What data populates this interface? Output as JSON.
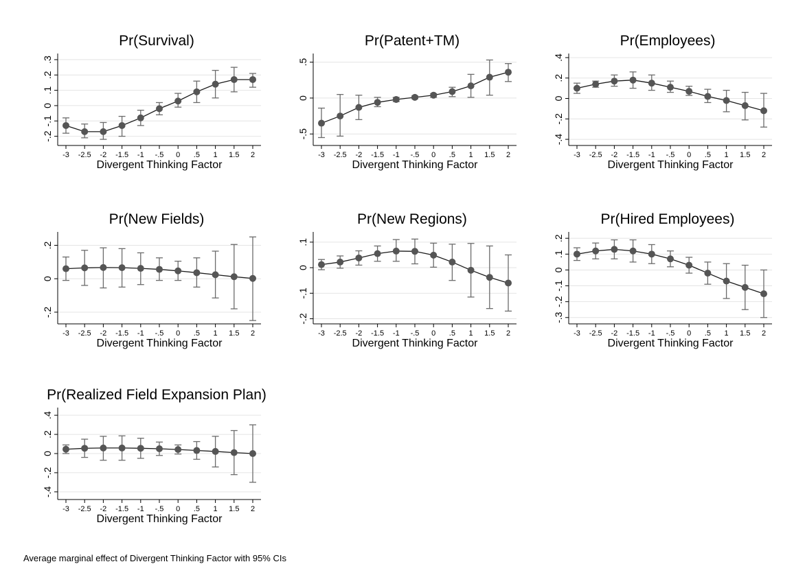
{
  "figure": {
    "note": "Average marginal effect of Divergent Thinking Factor with 95% CIs"
  },
  "chart_data": [
    {
      "type": "line",
      "title": "Pr(Survival)",
      "xlabel": "Divergent Thinking Factor",
      "ylabel": "",
      "x": [
        -3,
        -2.5,
        -2,
        -1.5,
        -1,
        -0.5,
        0,
        0.5,
        1,
        1.5,
        2
      ],
      "xtick_labels": [
        "-3",
        "-2.5",
        "-2",
        "-1.5",
        "-1",
        "-.5",
        "0",
        ".5",
        "1",
        "1.5",
        "2"
      ],
      "values": [
        -0.13,
        -0.17,
        -0.17,
        -0.13,
        -0.08,
        -0.02,
        0.03,
        0.09,
        0.14,
        0.17,
        0.17
      ],
      "ci_low": [
        -0.18,
        -0.21,
        -0.22,
        -0.2,
        -0.13,
        -0.06,
        -0.01,
        0.02,
        0.05,
        0.09,
        0.12
      ],
      "ci_high": [
        -0.08,
        -0.12,
        -0.11,
        -0.07,
        -0.03,
        0.02,
        0.08,
        0.16,
        0.23,
        0.25,
        0.21
      ],
      "yticks": [
        -0.2,
        -0.1,
        0,
        0.1,
        0.2,
        0.3
      ],
      "ytick_labels": [
        "-.2",
        "-.1",
        "0",
        ".1",
        ".2",
        ".3"
      ],
      "ylim": [
        -0.26,
        0.34
      ],
      "grid": true
    },
    {
      "type": "line",
      "title": "Pr(Patent+TM)",
      "xlabel": "Divergent Thinking Factor",
      "ylabel": "",
      "x": [
        -3,
        -2.5,
        -2,
        -1.5,
        -1,
        -0.5,
        0,
        0.5,
        1,
        1.5,
        2
      ],
      "xtick_labels": [
        "-3",
        "-2.5",
        "-2",
        "-1.5",
        "-1",
        "-.5",
        "0",
        ".5",
        "1",
        "1.5",
        "2"
      ],
      "values": [
        -0.35,
        -0.25,
        -0.13,
        -0.06,
        -0.02,
        0.01,
        0.04,
        0.09,
        0.17,
        0.29,
        0.36
      ],
      "ci_low": [
        -0.55,
        -0.53,
        -0.3,
        -0.12,
        -0.05,
        -0.01,
        0.01,
        0.02,
        0.01,
        0.04,
        0.23
      ],
      "ci_high": [
        -0.14,
        0.05,
        0.04,
        0.01,
        0.01,
        0.03,
        0.06,
        0.15,
        0.33,
        0.53,
        0.48
      ],
      "yticks": [
        -0.5,
        0,
        0.5
      ],
      "ytick_labels": [
        "-.5",
        "0",
        ".5"
      ],
      "ylim": [
        -0.66,
        0.62
      ],
      "grid": true
    },
    {
      "type": "line",
      "title": "Pr(Employees)",
      "xlabel": "Divergent Thinking Factor",
      "ylabel": "",
      "x": [
        -3,
        -2.5,
        -2,
        -1.5,
        -1,
        -0.5,
        0,
        0.5,
        1,
        1.5,
        2
      ],
      "xtick_labels": [
        "-3",
        "-2.5",
        "-2",
        "-1.5",
        "-1",
        "-.5",
        "0",
        ".5",
        "1",
        "1.5",
        "2"
      ],
      "values": [
        0.1,
        0.14,
        0.17,
        0.18,
        0.15,
        0.11,
        0.07,
        0.02,
        -0.02,
        -0.07,
        -0.12
      ],
      "ci_low": [
        0.05,
        0.11,
        0.12,
        0.1,
        0.08,
        0.06,
        0.03,
        -0.04,
        -0.13,
        -0.21,
        -0.28
      ],
      "ci_high": [
        0.15,
        0.17,
        0.23,
        0.26,
        0.23,
        0.17,
        0.12,
        0.09,
        0.08,
        0.06,
        0.05
      ],
      "yticks": [
        -0.4,
        -0.2,
        0,
        0.2,
        0.4
      ],
      "ytick_labels": [
        "-.4",
        "-.2",
        "0",
        ".2",
        ".4"
      ],
      "ylim": [
        -0.46,
        0.44
      ],
      "grid": true
    },
    {
      "type": "line",
      "title": "Pr(New Fields)",
      "xlabel": "Divergent Thinking Factor",
      "ylabel": "",
      "x": [
        -3,
        -2.5,
        -2,
        -1.5,
        -1,
        -0.5,
        0,
        0.5,
        1,
        1.5,
        2
      ],
      "xtick_labels": [
        "-3",
        "-2.5",
        "-2",
        "-1.5",
        "-1",
        "-.5",
        "0",
        ".5",
        "1",
        "1.5",
        "2"
      ],
      "values": [
        0.06,
        0.065,
        0.067,
        0.066,
        0.062,
        0.056,
        0.047,
        0.036,
        0.024,
        0.012,
        0.002
      ],
      "ci_low": [
        -0.01,
        -0.04,
        -0.055,
        -0.05,
        -0.035,
        -0.01,
        -0.01,
        -0.05,
        -0.115,
        -0.18,
        -0.25
      ],
      "ci_high": [
        0.13,
        0.17,
        0.185,
        0.18,
        0.155,
        0.125,
        0.105,
        0.125,
        0.165,
        0.205,
        0.25
      ],
      "yticks": [
        -0.2,
        0,
        0.2
      ],
      "ytick_labels": [
        "-.2",
        "0",
        ".2"
      ],
      "ylim": [
        -0.27,
        0.28
      ],
      "grid": true
    },
    {
      "type": "line",
      "title": "Pr(New Regions)",
      "xlabel": "Divergent Thinking Factor",
      "ylabel": "",
      "x": [
        -3,
        -2.5,
        -2,
        -1.5,
        -1,
        -0.5,
        0,
        0.5,
        1,
        1.5,
        2
      ],
      "xtick_labels": [
        "-3",
        "-2.5",
        "-2",
        "-1.5",
        "-1",
        "-.5",
        "0",
        ".5",
        "1",
        "1.5",
        "2"
      ],
      "values": [
        0.012,
        0.022,
        0.038,
        0.055,
        0.065,
        0.064,
        0.049,
        0.022,
        -0.01,
        -0.038,
        -0.06
      ],
      "ci_low": [
        -0.008,
        -0.002,
        0.01,
        0.025,
        0.025,
        0.015,
        0.002,
        -0.05,
        -0.115,
        -0.16,
        -0.17
      ],
      "ci_high": [
        0.032,
        0.046,
        0.066,
        0.085,
        0.11,
        0.112,
        0.096,
        0.092,
        0.095,
        0.085,
        0.05
      ],
      "yticks": [
        -0.2,
        -0.1,
        0,
        0.1
      ],
      "ytick_labels": [
        "-.2",
        "-.1",
        "0",
        ".1"
      ],
      "ylim": [
        -0.22,
        0.14
      ],
      "grid": true
    },
    {
      "type": "line",
      "title": "Pr(Hired Employees)",
      "xlabel": "Divergent Thinking Factor",
      "ylabel": "",
      "x": [
        -3,
        -2.5,
        -2,
        -1.5,
        -1,
        -0.5,
        0,
        0.5,
        1,
        1.5,
        2
      ],
      "xtick_labels": [
        "-3",
        "-2.5",
        "-2",
        "-1.5",
        "-1",
        "-.5",
        "0",
        ".5",
        "1",
        "1.5",
        "2"
      ],
      "values": [
        0.1,
        0.12,
        0.13,
        0.12,
        0.1,
        0.07,
        0.03,
        -0.02,
        -0.07,
        -0.11,
        -0.15
      ],
      "ci_low": [
        0.06,
        0.07,
        0.07,
        0.05,
        0.04,
        0.02,
        -0.02,
        -0.09,
        -0.18,
        -0.25,
        -0.3
      ],
      "ci_high": [
        0.14,
        0.17,
        0.19,
        0.19,
        0.16,
        0.12,
        0.08,
        0.05,
        0.04,
        0.03,
        0.0
      ],
      "yticks": [
        -0.3,
        -0.2,
        -0.1,
        0,
        0.1,
        0.2
      ],
      "ytick_labels": [
        "-.3",
        "-.2",
        "-.1",
        "0",
        ".1",
        ".2"
      ],
      "ylim": [
        -0.34,
        0.24
      ],
      "grid": true
    },
    {
      "type": "line",
      "title": "Pr(Realized Field Expansion Plan)",
      "xlabel": "Divergent Thinking Factor",
      "ylabel": "",
      "x": [
        -3,
        -2.5,
        -2,
        -1.5,
        -1,
        -0.5,
        0,
        0.5,
        1,
        1.5,
        2
      ],
      "xtick_labels": [
        "-3",
        "-2.5",
        "-2",
        "-1.5",
        "-1",
        "-.5",
        "0",
        ".5",
        "1",
        "1.5",
        "2"
      ],
      "values": [
        0.045,
        0.055,
        0.058,
        0.058,
        0.055,
        0.05,
        0.042,
        0.032,
        0.022,
        0.01,
        0.0
      ],
      "ci_low": [
        0.0,
        -0.04,
        -0.07,
        -0.07,
        -0.05,
        -0.02,
        -0.005,
        -0.06,
        -0.14,
        -0.22,
        -0.3
      ],
      "ci_high": [
        0.09,
        0.15,
        0.18,
        0.185,
        0.16,
        0.12,
        0.09,
        0.125,
        0.18,
        0.24,
        0.3
      ],
      "yticks": [
        -0.4,
        -0.2,
        0,
        0.2,
        0.4
      ],
      "ytick_labels": [
        "-.4",
        "-.2",
        "0",
        ".2",
        ".4"
      ],
      "ylim": [
        -0.48,
        0.48
      ],
      "grid": true
    }
  ]
}
